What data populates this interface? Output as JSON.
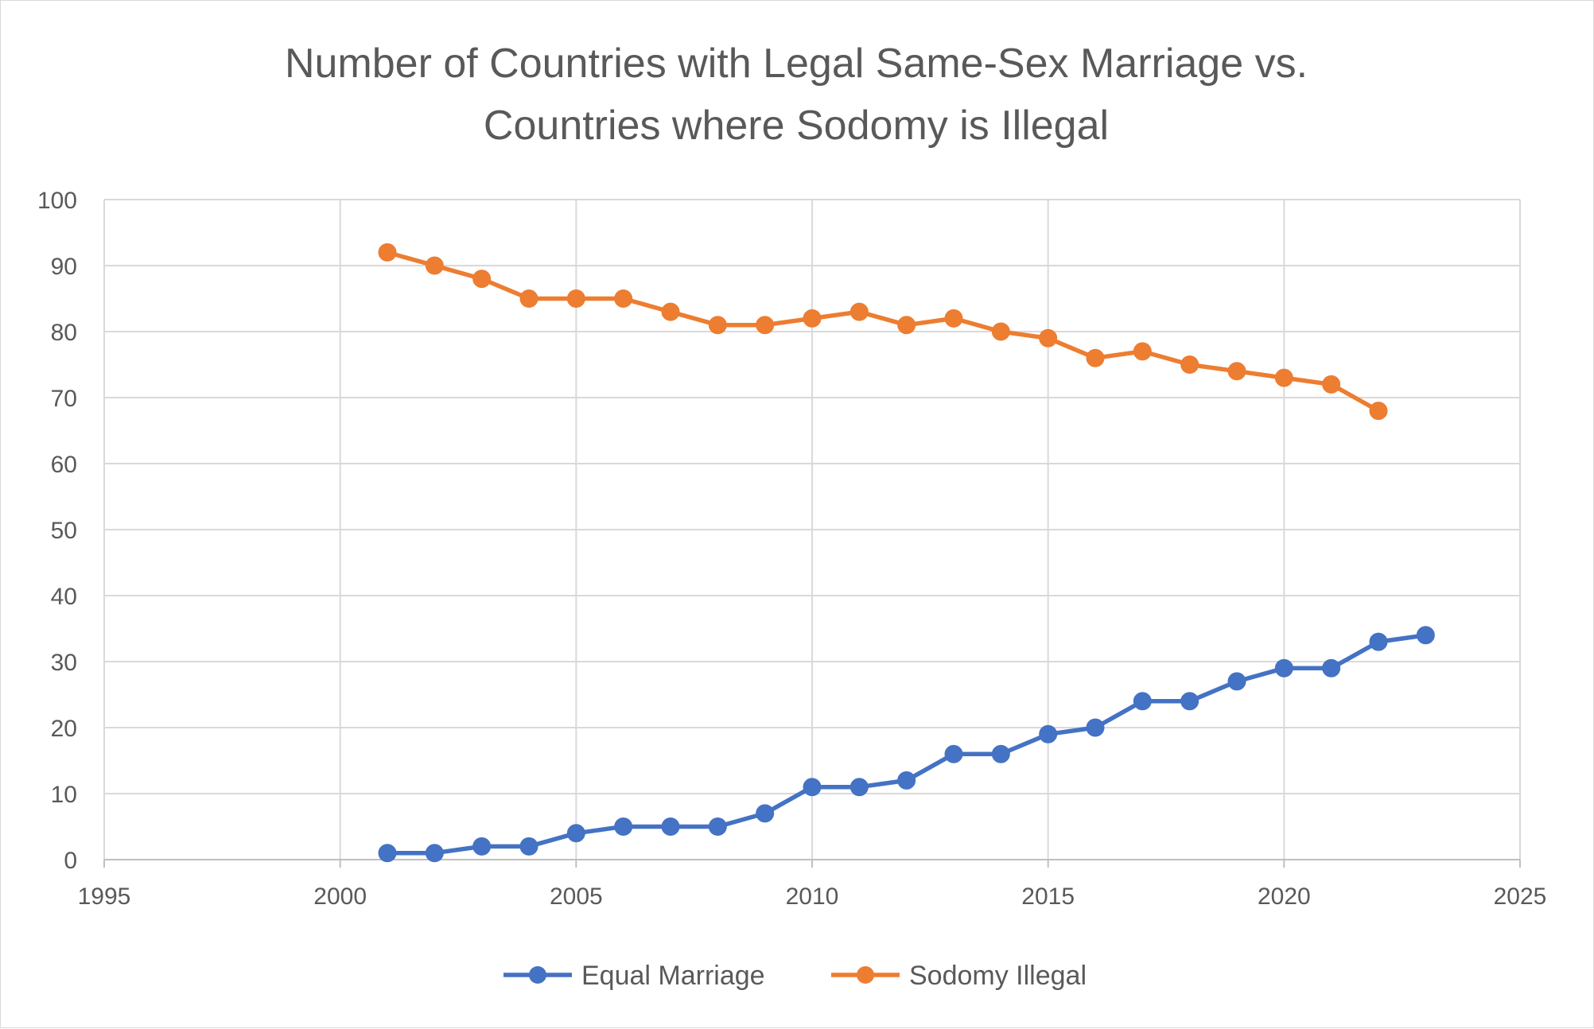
{
  "chart_data": {
    "type": "scatter",
    "title_lines": [
      "Number of Countries with Legal Same-Sex Marriage vs.",
      "Countries where Sodomy is Illegal"
    ],
    "xlabel": "",
    "ylabel": "",
    "xlim": [
      1995,
      2025
    ],
    "ylim": [
      0,
      100
    ],
    "x_ticks": [
      1995,
      2000,
      2005,
      2010,
      2015,
      2020,
      2025
    ],
    "y_ticks": [
      0,
      10,
      20,
      30,
      40,
      50,
      60,
      70,
      80,
      90,
      100
    ],
    "grid": true,
    "legend_position": "bottom",
    "series": [
      {
        "name": "Equal Marriage",
        "color": "#4472C4",
        "points": [
          [
            2001,
            1
          ],
          [
            2002,
            1
          ],
          [
            2003,
            2
          ],
          [
            2004,
            2
          ],
          [
            2005,
            4
          ],
          [
            2006,
            5
          ],
          [
            2007,
            5
          ],
          [
            2008,
            5
          ],
          [
            2009,
            7
          ],
          [
            2010,
            11
          ],
          [
            2011,
            11
          ],
          [
            2012,
            12
          ],
          [
            2013,
            16
          ],
          [
            2014,
            16
          ],
          [
            2015,
            19
          ],
          [
            2016,
            20
          ],
          [
            2017,
            24
          ],
          [
            2018,
            24
          ],
          [
            2019,
            27
          ],
          [
            2020,
            29
          ],
          [
            2021,
            29
          ],
          [
            2022,
            33
          ],
          [
            2023,
            34
          ]
        ]
      },
      {
        "name": "Sodomy Illegal",
        "color": "#ED7D31",
        "points": [
          [
            2001,
            92
          ],
          [
            2002,
            90
          ],
          [
            2003,
            88
          ],
          [
            2004,
            85
          ],
          [
            2005,
            85
          ],
          [
            2006,
            85
          ],
          [
            2007,
            83
          ],
          [
            2008,
            81
          ],
          [
            2009,
            81
          ],
          [
            2010,
            82
          ],
          [
            2011,
            83
          ],
          [
            2012,
            81
          ],
          [
            2013,
            82
          ],
          [
            2014,
            80
          ],
          [
            2015,
            79
          ],
          [
            2016,
            76
          ],
          [
            2017,
            77
          ],
          [
            2018,
            75
          ],
          [
            2019,
            74
          ],
          [
            2020,
            73
          ],
          [
            2021,
            72
          ],
          [
            2022,
            68
          ]
        ]
      }
    ]
  }
}
